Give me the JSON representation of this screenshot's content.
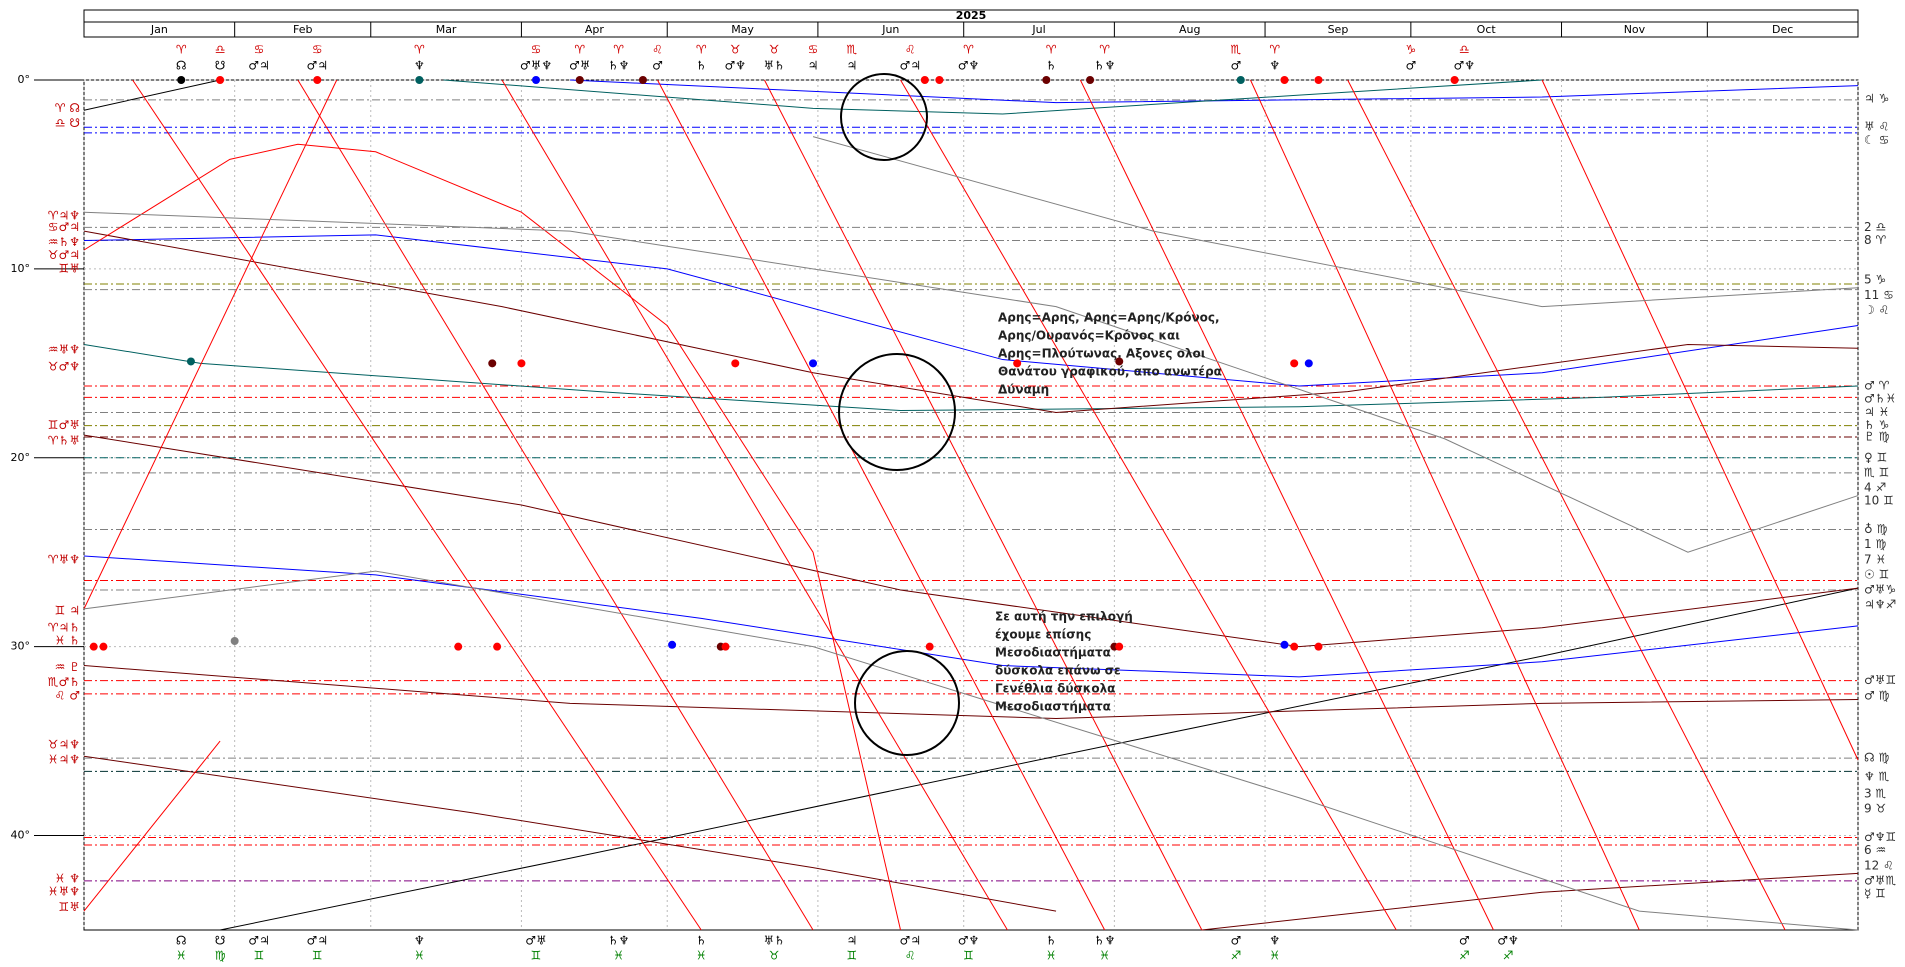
{
  "chart_data": {
    "type": "line",
    "title": "2025",
    "months": [
      "Jan",
      "Feb",
      "Mar",
      "Apr",
      "May",
      "Jun",
      "Jul",
      "Aug",
      "Sep",
      "Oct",
      "Nov",
      "Dec"
    ],
    "xlim": [
      0,
      365
    ],
    "xticks": [
      0,
      31,
      59,
      90,
      120,
      151,
      181,
      212,
      243,
      273,
      304,
      334,
      365
    ],
    "ylim": [
      0,
      45
    ],
    "yticks": [
      {
        "value": 0,
        "label": "0°"
      },
      {
        "value": 10,
        "label": "10°"
      },
      {
        "value": 20,
        "label": "20°"
      },
      {
        "value": 30,
        "label": "30°"
      },
      {
        "value": 40,
        "label": "40°"
      }
    ],
    "grid": true,
    "series": [
      {
        "color": "#000000",
        "x": [
          28,
          100,
          200,
          300,
          365
        ],
        "values": [
          45,
          41.2,
          35.8,
          30.5,
          26.9
        ]
      },
      {
        "color": "#000000",
        "x": [
          0,
          28
        ],
        "values": [
          1.6,
          0
        ]
      },
      {
        "color": "#0000ff",
        "x": [
          0,
          60,
          120,
          189,
          250,
          300,
          365
        ],
        "values": [
          8.5,
          8.2,
          10,
          14.8,
          16.2,
          15.5,
          13
        ]
      },
      {
        "color": "#0000ff",
        "x": [
          0,
          60,
          127,
          189,
          250,
          300,
          365
        ],
        "values": [
          25.2,
          26.2,
          28.5,
          31,
          31.6,
          30.8,
          28.9
        ]
      },
      {
        "color": "#0000ff",
        "x": [
          100,
          200,
          300,
          365
        ],
        "values": [
          0,
          1.2,
          0.9,
          0.3
        ]
      },
      {
        "color": "#006060",
        "x": [
          0,
          24,
          106,
          168,
          250,
          312,
          365
        ],
        "values": [
          14,
          15,
          16.5,
          17.5,
          17.3,
          16.8,
          16.2
        ]
      },
      {
        "color": "#006060",
        "x": [
          74,
          150,
          189,
          250,
          300
        ],
        "values": [
          0,
          1.5,
          1.8,
          0.8,
          0
        ]
      },
      {
        "color": "#6b0000",
        "x": [
          0,
          86,
          150,
          200,
          260,
          330,
          365
        ],
        "values": [
          8,
          12,
          15.5,
          17.6,
          16.5,
          14,
          14.2
        ]
      },
      {
        "color": "#6b0000",
        "x": [
          0,
          90,
          168,
          250,
          300,
          365
        ],
        "values": [
          18.8,
          22.5,
          27,
          30,
          29,
          26.9
        ]
      },
      {
        "color": "#6b0000",
        "x": [
          0,
          100,
          200,
          300,
          365
        ],
        "values": [
          31,
          33,
          33.8,
          33,
          32.8
        ]
      },
      {
        "color": "#6b0000",
        "x": [
          0,
          80,
          150,
          200
        ],
        "values": [
          35.8,
          38.8,
          41.7,
          44
        ]
      },
      {
        "color": "#6b0000",
        "x": [
          230,
          300,
          365
        ],
        "values": [
          45,
          43,
          42
        ]
      },
      {
        "color": "#ff0000",
        "x": [
          0,
          30,
          44,
          60,
          90,
          120,
          150,
          168
        ],
        "values": [
          9,
          4.2,
          3.4,
          3.8,
          7,
          13,
          25,
          45
        ]
      },
      {
        "color": "#ff0000",
        "x": [
          10,
          127
        ],
        "values": [
          0,
          45
        ]
      },
      {
        "color": "#ff0000",
        "x": [
          44,
          150
        ],
        "values": [
          0,
          45
        ]
      },
      {
        "color": "#ff0000",
        "x": [
          86,
          190
        ],
        "values": [
          0,
          45
        ]
      },
      {
        "color": "#ff0000",
        "x": [
          118,
          210
        ],
        "values": [
          0,
          45
        ]
      },
      {
        "color": "#ff0000",
        "x": [
          140,
          230
        ],
        "values": [
          0,
          45
        ]
      },
      {
        "color": "#ff0000",
        "x": [
          168,
          270
        ],
        "values": [
          0,
          45
        ]
      },
      {
        "color": "#ff0000",
        "x": [
          205,
          290
        ],
        "values": [
          0,
          45
        ]
      },
      {
        "color": "#ff0000",
        "x": [
          240,
          320
        ],
        "values": [
          0,
          45
        ]
      },
      {
        "color": "#ff0000",
        "x": [
          260,
          350
        ],
        "values": [
          0,
          45
        ]
      },
      {
        "color": "#ff0000",
        "x": [
          300,
          365
        ],
        "values": [
          0,
          36
        ]
      },
      {
        "color": "#ff0000",
        "x": [
          0,
          52
        ],
        "values": [
          28,
          0
        ]
      },
      {
        "color": "#ff0000",
        "x": [
          0,
          28
        ],
        "values": [
          44,
          35
        ]
      },
      {
        "color": "#808080",
        "x": [
          0,
          100,
          200,
          280,
          330,
          365
        ],
        "values": [
          7,
          8,
          12,
          19,
          25,
          22
        ]
      },
      {
        "color": "#808080",
        "x": [
          0,
          60,
          150,
          250,
          320,
          365
        ],
        "values": [
          28,
          26,
          30,
          38,
          44,
          45
        ]
      },
      {
        "color": "#808080",
        "x": [
          150,
          220,
          300,
          365
        ],
        "values": [
          3,
          8,
          12,
          11
        ]
      }
    ],
    "dots": [
      {
        "x": 20,
        "y": 0,
        "color": "#000000"
      },
      {
        "x": 28,
        "y": 0,
        "color": "#ff0000"
      },
      {
        "x": 48,
        "y": 0,
        "color": "#ff0000"
      },
      {
        "x": 69,
        "y": 0,
        "color": "#006060"
      },
      {
        "x": 93,
        "y": 0,
        "color": "#0000ff"
      },
      {
        "x": 102,
        "y": 0,
        "color": "#6b0000"
      },
      {
        "x": 115,
        "y": 0,
        "color": "#6b0000"
      },
      {
        "x": 173,
        "y": 0,
        "color": "#ff0000"
      },
      {
        "x": 176,
        "y": 0,
        "color": "#ff0000"
      },
      {
        "x": 198,
        "y": 0,
        "color": "#6b0000"
      },
      {
        "x": 207,
        "y": 0,
        "color": "#6b0000"
      },
      {
        "x": 238,
        "y": 0,
        "color": "#006060"
      },
      {
        "x": 247,
        "y": 0,
        "color": "#ff0000"
      },
      {
        "x": 254,
        "y": 0,
        "color": "#ff0000"
      },
      {
        "x": 282,
        "y": 0,
        "color": "#ff0000"
      },
      {
        "x": 22,
        "y": 14.9,
        "color": "#006060"
      },
      {
        "x": 84,
        "y": 15,
        "color": "#6b0000"
      },
      {
        "x": 90,
        "y": 15,
        "color": "#ff0000"
      },
      {
        "x": 134,
        "y": 15,
        "color": "#ff0000"
      },
      {
        "x": 150,
        "y": 15,
        "color": "#0000ff"
      },
      {
        "x": 192,
        "y": 15,
        "color": "#ff0000"
      },
      {
        "x": 213,
        "y": 14.9,
        "color": "#6b0000"
      },
      {
        "x": 249,
        "y": 15,
        "color": "#ff0000"
      },
      {
        "x": 252,
        "y": 15,
        "color": "#0000ff"
      },
      {
        "x": 2,
        "y": 30,
        "color": "#ff0000"
      },
      {
        "x": 4,
        "y": 30,
        "color": "#ff0000"
      },
      {
        "x": 31,
        "y": 29.7,
        "color": "#808080"
      },
      {
        "x": 77,
        "y": 30,
        "color": "#ff0000"
      },
      {
        "x": 85,
        "y": 30,
        "color": "#ff0000"
      },
      {
        "x": 121,
        "y": 29.9,
        "color": "#0000ff"
      },
      {
        "x": 131,
        "y": 30,
        "color": "#6b0000"
      },
      {
        "x": 132,
        "y": 30,
        "color": "#ff0000"
      },
      {
        "x": 174,
        "y": 30,
        "color": "#ff0000"
      },
      {
        "x": 212,
        "y": 30,
        "color": "#6b0000"
      },
      {
        "x": 213,
        "y": 30,
        "color": "#ff0000"
      },
      {
        "x": 247,
        "y": 29.9,
        "color": "#0000ff"
      },
      {
        "x": 249,
        "y": 30,
        "color": "#ff0000"
      },
      {
        "x": 254,
        "y": 30,
        "color": "#ff0000"
      }
    ],
    "aspect_lines": [
      {
        "y": 1.05,
        "color": "#808080"
      },
      {
        "y": 2.5,
        "color": "#0000ff"
      },
      {
        "y": 2.8,
        "color": "#0000ff"
      },
      {
        "y": 7.8,
        "color": "#808080"
      },
      {
        "y": 8.5,
        "color": "#808080"
      },
      {
        "y": 10.8,
        "color": "#808000"
      },
      {
        "y": 11.1,
        "color": "#808080"
      },
      {
        "y": 16.2,
        "color": "#ff0000"
      },
      {
        "y": 16.8,
        "color": "#ff0000"
      },
      {
        "y": 17.6,
        "color": "#808080"
      },
      {
        "y": 18.3,
        "color": "#808000"
      },
      {
        "y": 18.9,
        "color": "#6b0000"
      },
      {
        "y": 20,
        "color": "#006060"
      },
      {
        "y": 20.8,
        "color": "#808080"
      },
      {
        "y": 23.8,
        "color": "#808080"
      },
      {
        "y": 26.5,
        "color": "#ff0000"
      },
      {
        "y": 27,
        "color": "#808080"
      },
      {
        "y": 31.8,
        "color": "#ff0000"
      },
      {
        "y": 32.5,
        "color": "#ff0000"
      },
      {
        "y": 35.9,
        "color": "#808080"
      },
      {
        "y": 36.6,
        "color": "#003030"
      },
      {
        "y": 40.1,
        "color": "#ff0000"
      },
      {
        "y": 40.5,
        "color": "#ff0000"
      },
      {
        "y": 42.4,
        "color": "#800080"
      }
    ],
    "top_labels": [
      {
        "x": 20,
        "upper": "♈",
        "lower": "☊"
      },
      {
        "x": 28,
        "upper": "♎",
        "lower": "☋"
      },
      {
        "x": 36,
        "upper": "♋",
        "lower": "♂♃"
      },
      {
        "x": 48,
        "upper": "♋",
        "lower": "♂♃"
      },
      {
        "x": 69,
        "upper": "♈",
        "lower": "♆"
      },
      {
        "x": 93,
        "upper": "♋",
        "lower": "♂♅♆"
      },
      {
        "x": 102,
        "upper": "♈",
        "lower": "♂♅"
      },
      {
        "x": 110,
        "upper": "♈",
        "lower": "♄♆"
      },
      {
        "x": 118,
        "upper": "♌",
        "lower": "♂"
      },
      {
        "x": 127,
        "upper": "♈",
        "lower": "♄"
      },
      {
        "x": 134,
        "upper": "♉",
        "lower": "♂♆"
      },
      {
        "x": 142,
        "upper": "♉",
        "lower": "♅♄"
      },
      {
        "x": 150,
        "upper": "♋",
        "lower": "♃"
      },
      {
        "x": 158,
        "upper": "♏",
        "lower": "♃"
      },
      {
        "x": 170,
        "upper": "♌",
        "lower": "♂♃"
      },
      {
        "x": 182,
        "upper": "♈",
        "lower": "♂♆"
      },
      {
        "x": 199,
        "upper": "♈",
        "lower": "♄"
      },
      {
        "x": 210,
        "upper": "♈",
        "lower": "♄♆"
      },
      {
        "x": 237,
        "upper": "♏",
        "lower": "♂"
      },
      {
        "x": 245,
        "upper": "♈",
        "lower": "♆"
      },
      {
        "x": 273,
        "upper": "♑",
        "lower": "♂"
      },
      {
        "x": 284,
        "upper": "♎",
        "lower": "♂♆"
      }
    ],
    "bottom_labels": [
      {
        "x": 20,
        "upper": "☊",
        "lower": "♓"
      },
      {
        "x": 28,
        "upper": "☋",
        "lower": "♍"
      },
      {
        "x": 36,
        "upper": "♂♃",
        "lower": "♊"
      },
      {
        "x": 48,
        "upper": "♂♃",
        "lower": "♊"
      },
      {
        "x": 69,
        "upper": "♆",
        "lower": "♓"
      },
      {
        "x": 93,
        "upper": "♂♅",
        "lower": "♊"
      },
      {
        "x": 110,
        "upper": "♄♆",
        "lower": "♓"
      },
      {
        "x": 127,
        "upper": "♄",
        "lower": "♓"
      },
      {
        "x": 142,
        "upper": "♅♄",
        "lower": "♉"
      },
      {
        "x": 158,
        "upper": "♃",
        "lower": "♊"
      },
      {
        "x": 170,
        "upper": "♂♃",
        "lower": "♌"
      },
      {
        "x": 182,
        "upper": "♂♆",
        "lower": "♊"
      },
      {
        "x": 199,
        "upper": "♄",
        "lower": "♓"
      },
      {
        "x": 210,
        "upper": "♄♆",
        "lower": "♓"
      },
      {
        "x": 237,
        "upper": "♂",
        "lower": "♐"
      },
      {
        "x": 245,
        "upper": "♆",
        "lower": "♓"
      },
      {
        "x": 284,
        "upper": "♂",
        "lower": "♐"
      },
      {
        "x": 293,
        "upper": "♂♆",
        "lower": "♐"
      }
    ],
    "left_labels": [
      {
        "y": 1.5,
        "text": "♈ ☊"
      },
      {
        "y": 2.3,
        "text": "♎ ☋"
      },
      {
        "y": 7.2,
        "text": "♈♃♆"
      },
      {
        "y": 7.8,
        "text": "♋♂♃"
      },
      {
        "y": 8.6,
        "text": "♒♄♆"
      },
      {
        "y": 9.3,
        "text": "♉♂♃"
      },
      {
        "y": 10,
        "text": "♊♅"
      },
      {
        "y": 14.3,
        "text": "♒♅♆"
      },
      {
        "y": 15.2,
        "text": "♉♂♆"
      },
      {
        "y": 18.3,
        "text": "♊♂♅"
      },
      {
        "y": 19.1,
        "text": "♈♄♅"
      },
      {
        "y": 25.4,
        "text": "♈♅♆"
      },
      {
        "y": 28.1,
        "text": "♊ ♃"
      },
      {
        "y": 29,
        "text": "♈♃♄"
      },
      {
        "y": 29.7,
        "text": "♓ ♄"
      },
      {
        "y": 31.1,
        "text": "♒ ♇"
      },
      {
        "y": 31.9,
        "text": "♏♂♄"
      },
      {
        "y": 32.6,
        "text": "♌ ♂"
      },
      {
        "y": 35.2,
        "text": "♉♃♆"
      },
      {
        "y": 36,
        "text": "♓♃♆"
      },
      {
        "y": 42.3,
        "text": "♓ ♆"
      },
      {
        "y": 43,
        "text": "♓♅♆"
      },
      {
        "y": 43.8,
        "text": "♊♅"
      }
    ],
    "right_labels": [
      {
        "y": 1,
        "text": "♃ ♑"
      },
      {
        "y": 2.5,
        "text": "♅ ♌"
      },
      {
        "y": 3.2,
        "text": "☾ ♋"
      },
      {
        "y": 7.8,
        "text": "2 ♎"
      },
      {
        "y": 8.5,
        "text": "8 ♈"
      },
      {
        "y": 10.6,
        "text": "5 ♑"
      },
      {
        "y": 11.4,
        "text": "11 ♋"
      },
      {
        "y": 12.2,
        "text": "☽ ♌"
      },
      {
        "y": 16.2,
        "text": "♂ ♈"
      },
      {
        "y": 16.9,
        "text": "♂♄♓"
      },
      {
        "y": 17.6,
        "text": "♃ ♓"
      },
      {
        "y": 18.3,
        "text": "♄ ♑"
      },
      {
        "y": 18.9,
        "text": "♇ ♍"
      },
      {
        "y": 20,
        "text": "♀ ♊"
      },
      {
        "y": 20.8,
        "text": "♏ ♊"
      },
      {
        "y": 21.6,
        "text": "4 ♐"
      },
      {
        "y": 22.3,
        "text": "10 ♊"
      },
      {
        "y": 23.8,
        "text": "♁ ♍"
      },
      {
        "y": 24.6,
        "text": "1 ♍"
      },
      {
        "y": 25.4,
        "text": "7 ♓"
      },
      {
        "y": 26.2,
        "text": "☉ ♊"
      },
      {
        "y": 27,
        "text": "♂♅♑"
      },
      {
        "y": 27.8,
        "text": "♃♆♐"
      },
      {
        "y": 31.8,
        "text": "♂♅♊"
      },
      {
        "y": 32.6,
        "text": "♂ ♍"
      },
      {
        "y": 35.9,
        "text": "☊ ♍"
      },
      {
        "y": 36.9,
        "text": "♆ ♏"
      },
      {
        "y": 37.8,
        "text": "3 ♏"
      },
      {
        "y": 38.6,
        "text": "9 ♉"
      },
      {
        "y": 40.1,
        "text": "♂♆♊"
      },
      {
        "y": 40.8,
        "text": "6 ♒"
      },
      {
        "y": 41.6,
        "text": "12 ♌"
      },
      {
        "y": 42.4,
        "text": "♂♅♏"
      },
      {
        "y": 43.1,
        "text": "☿ ♊"
      }
    ],
    "annotations": [
      {
        "lines": [
          "Αρης=Αρης, Αρης=Αρης/Κρόνος,",
          "Αρης/Ουρανός=Κρόνος και",
          "Αρης=Πλούτωνας. Αξονες ολοι",
          "Θανάτου γραφικού, απο ανωτέρα",
          "Δύναμη"
        ]
      },
      {
        "lines": [
          "Σε αυτή την επιλογή",
          "έχουμε επίσης",
          "Μεσοδιαστήματα",
          "δύσκολα επάνω σε",
          "Γενέθλια δύσκολα",
          "Μεσοδιαστήματα"
        ]
      }
    ]
  }
}
